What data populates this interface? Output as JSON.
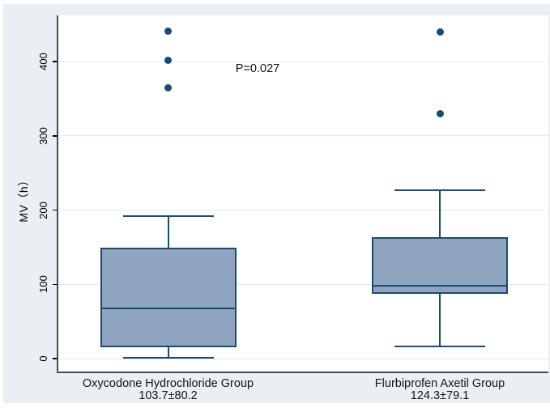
{
  "figure": {
    "background": "#ffffff",
    "canvas_color": "#e9eff2",
    "plot_background": "#ffffff"
  },
  "colors": {
    "box_fill": "#8fa5bf",
    "box_border": "#1b4a72",
    "outlier": "#1b4a72",
    "gridline": "#e1ecf1",
    "axis_line": "#4a4a4a",
    "tick_color": "#000000",
    "text": "#151515"
  },
  "chart_data": {
    "type": "boxplot",
    "title": "",
    "ylabel": "MV（h）",
    "xlabel": "",
    "ylim": [
      0,
      462
    ],
    "yticks": [
      0,
      100,
      200,
      300,
      400
    ],
    "grid": true,
    "annotation": "P=0.027",
    "groups": [
      {
        "label": "Oxycodone Hydrochloride Group",
        "stat_label": "103.7±80.2",
        "mean": 103.7,
        "sd": 80.2,
        "whisker_low": 1,
        "q1": 15,
        "median": 68,
        "q3": 149,
        "whisker_high": 192,
        "outliers": [
          365,
          402,
          441
        ]
      },
      {
        "label": "Flurbiprofen Axetil Group",
        "stat_label": "124.3±79.1",
        "mean": 124.3,
        "sd": 79.1,
        "whisker_low": 16,
        "q1": 87,
        "median": 98,
        "q3": 163,
        "whisker_high": 227,
        "outliers": [
          330,
          440
        ]
      }
    ]
  }
}
